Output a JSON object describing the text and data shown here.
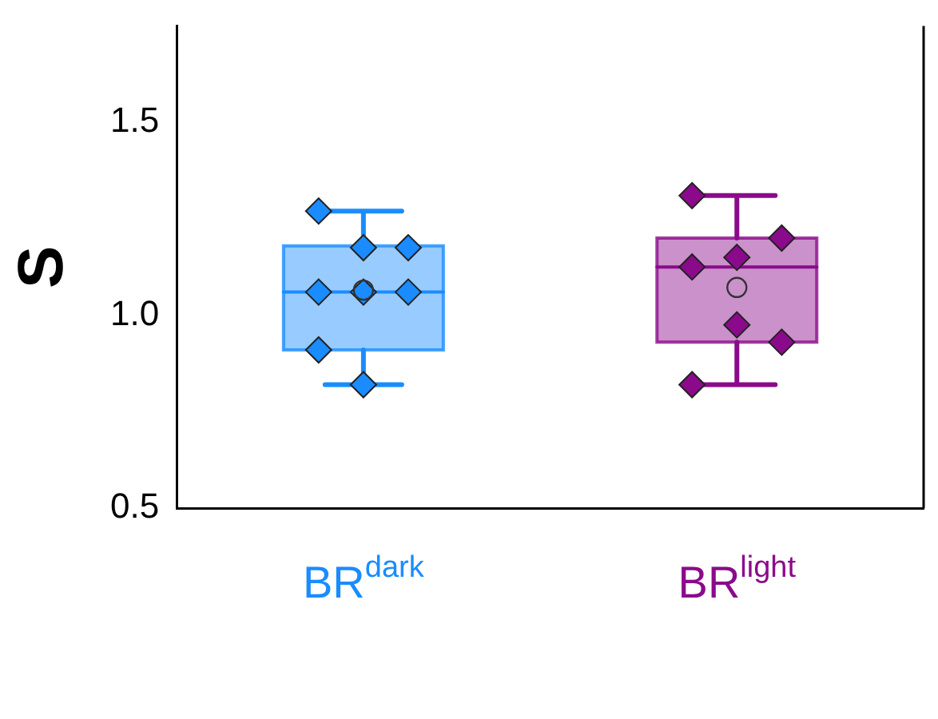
{
  "chart_data": {
    "type": "box",
    "ylabel": "S",
    "categories": [
      "BR$^{dark}$",
      "BR$^{light}$"
    ],
    "colors": [
      "#1a8cff",
      "#8b0a8b"
    ],
    "boxes": [
      {
        "low": 0.82,
        "q1": 0.91,
        "median": 1.06,
        "q3": 1.18,
        "high": 1.27,
        "mean": 1.065
      },
      {
        "low": 0.82,
        "q1": 0.93,
        "median": 1.125,
        "q3": 1.2,
        "high": 1.31,
        "mean": 1.072
      }
    ],
    "series": [
      {
        "type": "scatter",
        "color": "#1a8cff",
        "x": [
          "BR$^{dark}$",
          "BR$^{dark}$",
          "BR$^{dark}$",
          "BR$^{dark}$",
          "BR$^{dark}$",
          "BR$^{dark}$",
          "BR$^{dark}$",
          "BR$^{dark}$"
        ],
        "values": [
          1.27,
          1.175,
          1.175,
          1.06,
          1.06,
          1.06,
          0.91,
          0.82
        ]
      },
      {
        "type": "scatter",
        "color": "#8b0a8b",
        "x": [
          "BR$^{light}$",
          "BR$^{light}$",
          "BR$^{light}$",
          "BR$^{light}$",
          "BR$^{light}$",
          "BR$^{light}$",
          "BR$^{light}$"
        ],
        "values": [
          1.31,
          1.15,
          1.2,
          1.125,
          0.975,
          0.93,
          0.82
        ]
      }
    ],
    "ylim": [
      0.5,
      1.75
    ],
    "yticks": [
      {
        "value": 0.5,
        "label": "0.5"
      },
      {
        "value": 1,
        "label": "1.0"
      },
      {
        "value": 1.5,
        "label": "1.5"
      }
    ],
    "marker": "diamond",
    "grid": false,
    "legend": false
  }
}
